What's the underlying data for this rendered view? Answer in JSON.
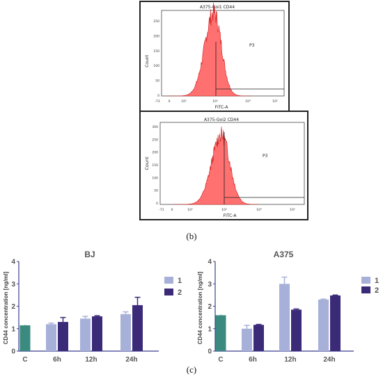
{
  "figure": {
    "label_b": "(b)",
    "label_c": "(c)"
  },
  "colors": {
    "histogram_fill": "#ff7070",
    "histogram_edge": "#cc1a1a",
    "control_bar": "#3a8a80",
    "series1_bar": "#a7b0d9",
    "series2_bar": "#3b2a78",
    "axis_blue": "#3a3f8f"
  },
  "flow_panels": [
    {
      "title": "A375-Goi1 CD44",
      "xlabel": "FITC-A",
      "ylabel": "Count",
      "gate_label": "P3",
      "x_ticks": [
        "-73",
        "0",
        "10²",
        "10³",
        "10⁴",
        "10⁵"
      ],
      "y_ticks": [
        "0",
        "50",
        "100",
        "150",
        "200",
        "250"
      ]
    },
    {
      "title": "A375-Goi2 CD44",
      "xlabel": "FITC-A",
      "ylabel": "Count",
      "gate_label": "P3",
      "x_ticks": [
        "-71",
        "0",
        "10²",
        "10³",
        "10⁴",
        "10⁵"
      ],
      "y_ticks": [
        "0",
        "50",
        "100",
        "150",
        "200",
        "250",
        "300"
      ]
    }
  ],
  "chart_data": [
    {
      "type": "bar",
      "title": "BJ",
      "ylabel": "CD44 concentration [ng/ml]",
      "ylim": [
        0,
        4
      ],
      "y_ticks": [
        "0",
        "1",
        "2",
        "3",
        "4"
      ],
      "categories": [
        "C",
        "6h",
        "12h",
        "24h"
      ],
      "control": {
        "value": 1.15,
        "error": 0.02
      },
      "series": [
        {
          "name": "1",
          "values": [
            null,
            1.2,
            1.45,
            1.65
          ],
          "errors": [
            null,
            0.05,
            0.1,
            0.1
          ]
        },
        {
          "name": "2",
          "values": [
            null,
            1.3,
            1.55,
            2.05
          ],
          "errors": [
            null,
            0.2,
            0.03,
            0.35
          ]
        }
      ],
      "legend": "right"
    },
    {
      "type": "bar",
      "title": "A375",
      "ylabel": "CD44 concentration [ng/ml]",
      "ylim": [
        0,
        4
      ],
      "y_ticks": [
        "0",
        "1",
        "2",
        "3",
        "4"
      ],
      "categories": [
        "C",
        "6h",
        "12h",
        "24h"
      ],
      "control": {
        "value": 1.6,
        "error": 0.03
      },
      "series": [
        {
          "name": "1",
          "values": [
            null,
            1.0,
            3.0,
            2.3
          ],
          "errors": [
            null,
            0.15,
            0.3,
            0.02
          ]
        },
        {
          "name": "2",
          "values": [
            null,
            1.17,
            1.85,
            2.48
          ],
          "errors": [
            null,
            0.02,
            0.03,
            0.02
          ]
        }
      ],
      "legend": "right"
    }
  ]
}
